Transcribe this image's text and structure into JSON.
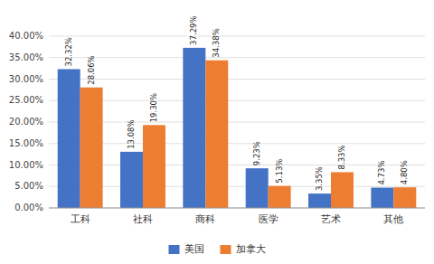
{
  "chart_data": {
    "type": "bar",
    "categories": [
      "工科",
      "社科",
      "商科",
      "医学",
      "艺术",
      "其他"
    ],
    "series": [
      {
        "name": "美国",
        "color": "#4472C4",
        "values": [
          32.32,
          13.08,
          37.29,
          9.23,
          3.35,
          4.73
        ],
        "value_labels": [
          "32.32%",
          "13.08%",
          "37.29%",
          "9.23%",
          "3.35%",
          "4.73%"
        ]
      },
      {
        "name": "加拿大",
        "color": "#ED7D31",
        "values": [
          28.06,
          19.3,
          34.38,
          5.13,
          8.33,
          4.8
        ],
        "value_labels": [
          "28.06%",
          "19.30%",
          "34.38%",
          "5.13%",
          "8.33%",
          "4.80%"
        ]
      }
    ],
    "ylim": [
      0,
      40
    ],
    "yticks": [
      {
        "value": 0,
        "label": "0.00%"
      },
      {
        "value": 5,
        "label": "5.00%"
      },
      {
        "value": 10,
        "label": "10.00%"
      },
      {
        "value": 15,
        "label": "15.00%"
      },
      {
        "value": 20,
        "label": "20.00%"
      },
      {
        "value": 25,
        "label": "25.00%"
      },
      {
        "value": 30,
        "label": "30.00%"
      },
      {
        "value": 35,
        "label": "35.00%"
      },
      {
        "value": 40,
        "label": "40.00%"
      }
    ],
    "grid": true,
    "data_labels": true,
    "legend": "bottom"
  }
}
